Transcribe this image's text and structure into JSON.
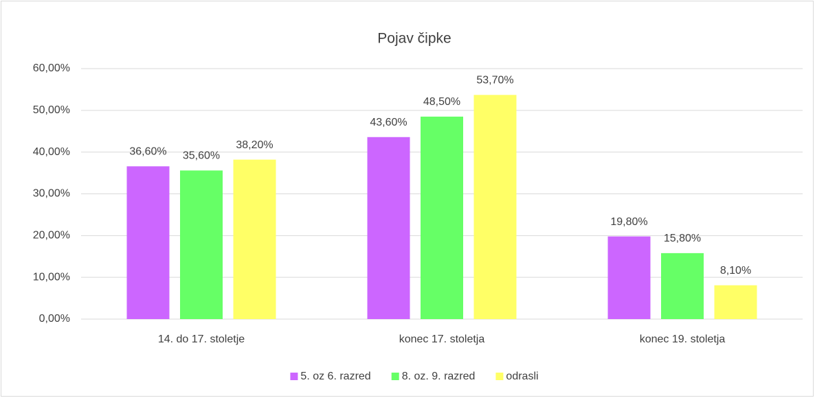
{
  "chart_data": {
    "type": "bar",
    "title": "Pojav čipke",
    "categories": [
      "14. do 17. stoletje",
      "konec 17. stoletja",
      "konec 19. stoletja"
    ],
    "series": [
      {
        "name": "5. oz 6. razred",
        "color": "#cc66ff",
        "values": [
          36.6,
          43.6,
          19.8
        ],
        "value_labels": [
          "36,60%",
          "43,60%",
          "19,80%"
        ]
      },
      {
        "name": "8. oz. 9. razred",
        "color": "#66ff66",
        "values": [
          35.6,
          48.5,
          15.8
        ],
        "value_labels": [
          "35,60%",
          "48,50%",
          "15,80%"
        ]
      },
      {
        "name": "odrasli",
        "color": "#ffff66",
        "values": [
          38.2,
          53.7,
          8.1
        ],
        "value_labels": [
          "38,20%",
          "53,70%",
          "8,10%"
        ]
      }
    ],
    "ylim": [
      0,
      60
    ],
    "yticks": [
      {
        "value": 0,
        "label": "0,00%"
      },
      {
        "value": 10,
        "label": "10,00%"
      },
      {
        "value": 20,
        "label": "20,00%"
      },
      {
        "value": 30,
        "label": "30,00%"
      },
      {
        "value": 40,
        "label": "40,00%"
      },
      {
        "value": 50,
        "label": "50,00%"
      },
      {
        "value": 60,
        "label": "60,00%"
      }
    ],
    "grid": true,
    "legend": "bottom"
  }
}
